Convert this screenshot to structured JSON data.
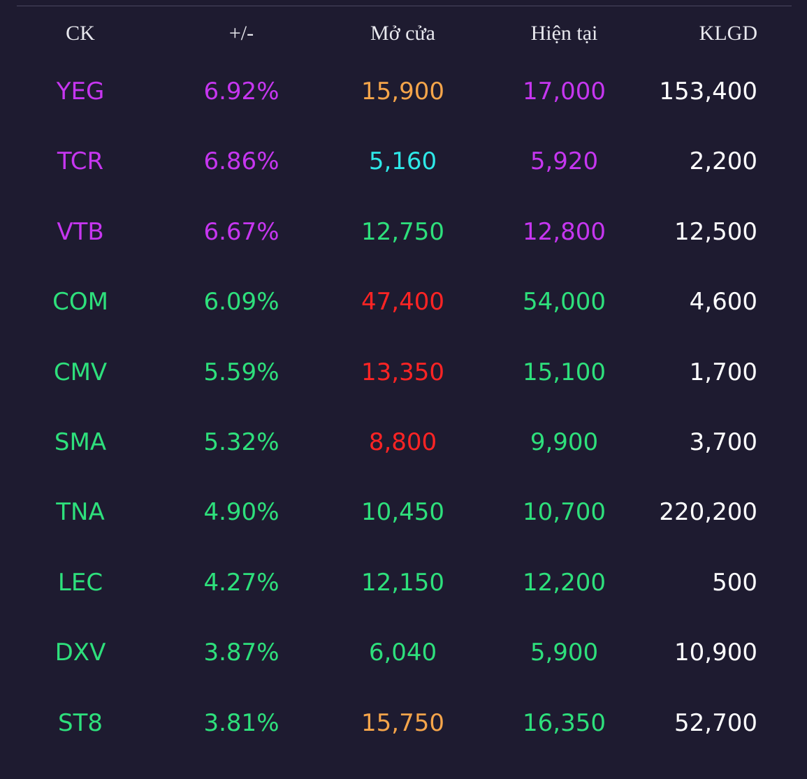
{
  "colors": {
    "background": "#1e1b30",
    "ceiling": "#c636f0",
    "up": "#2ee07c",
    "reference": "#f5a54a",
    "floor": "#2ee8e8",
    "down": "#ff2424",
    "volume": "#ffffff",
    "header": "#e8e8ee"
  },
  "table": {
    "headers": {
      "symbol": "CK",
      "change": "+/-",
      "open": "Mở cửa",
      "current": "Hiện tại",
      "volume": "KLGD"
    },
    "rows": [
      {
        "symbol": "YEG",
        "change": "6.92%",
        "open": "15,900",
        "current": "17,000",
        "volume": "153,400",
        "symbol_color": "#c636f0",
        "change_color": "#c636f0",
        "open_color": "#f5a54a",
        "current_color": "#c636f0"
      },
      {
        "symbol": "TCR",
        "change": "6.86%",
        "open": "5,160",
        "current": "5,920",
        "volume": "2,200",
        "symbol_color": "#c636f0",
        "change_color": "#c636f0",
        "open_color": "#2ee8e8",
        "current_color": "#c636f0"
      },
      {
        "symbol": "VTB",
        "change": "6.67%",
        "open": "12,750",
        "current": "12,800",
        "volume": "12,500",
        "symbol_color": "#c636f0",
        "change_color": "#c636f0",
        "open_color": "#2ee07c",
        "current_color": "#c636f0"
      },
      {
        "symbol": "COM",
        "change": "6.09%",
        "open": "47,400",
        "current": "54,000",
        "volume": "4,600",
        "symbol_color": "#2ee07c",
        "change_color": "#2ee07c",
        "open_color": "#ff2424",
        "current_color": "#2ee07c"
      },
      {
        "symbol": "CMV",
        "change": "5.59%",
        "open": "13,350",
        "current": "15,100",
        "volume": "1,700",
        "symbol_color": "#2ee07c",
        "change_color": "#2ee07c",
        "open_color": "#ff2424",
        "current_color": "#2ee07c"
      },
      {
        "symbol": "SMA",
        "change": "5.32%",
        "open": "8,800",
        "current": "9,900",
        "volume": "3,700",
        "symbol_color": "#2ee07c",
        "change_color": "#2ee07c",
        "open_color": "#ff2424",
        "current_color": "#2ee07c"
      },
      {
        "symbol": "TNA",
        "change": "4.90%",
        "open": "10,450",
        "current": "10,700",
        "volume": "220,200",
        "symbol_color": "#2ee07c",
        "change_color": "#2ee07c",
        "open_color": "#2ee07c",
        "current_color": "#2ee07c"
      },
      {
        "symbol": "LEC",
        "change": "4.27%",
        "open": "12,150",
        "current": "12,200",
        "volume": "500",
        "symbol_color": "#2ee07c",
        "change_color": "#2ee07c",
        "open_color": "#2ee07c",
        "current_color": "#2ee07c"
      },
      {
        "symbol": "DXV",
        "change": "3.87%",
        "open": "6,040",
        "current": "5,900",
        "volume": "10,900",
        "symbol_color": "#2ee07c",
        "change_color": "#2ee07c",
        "open_color": "#2ee07c",
        "current_color": "#2ee07c"
      },
      {
        "symbol": "ST8",
        "change": "3.81%",
        "open": "15,750",
        "current": "16,350",
        "volume": "52,700",
        "symbol_color": "#2ee07c",
        "change_color": "#2ee07c",
        "open_color": "#f5a54a",
        "current_color": "#2ee07c"
      }
    ]
  }
}
